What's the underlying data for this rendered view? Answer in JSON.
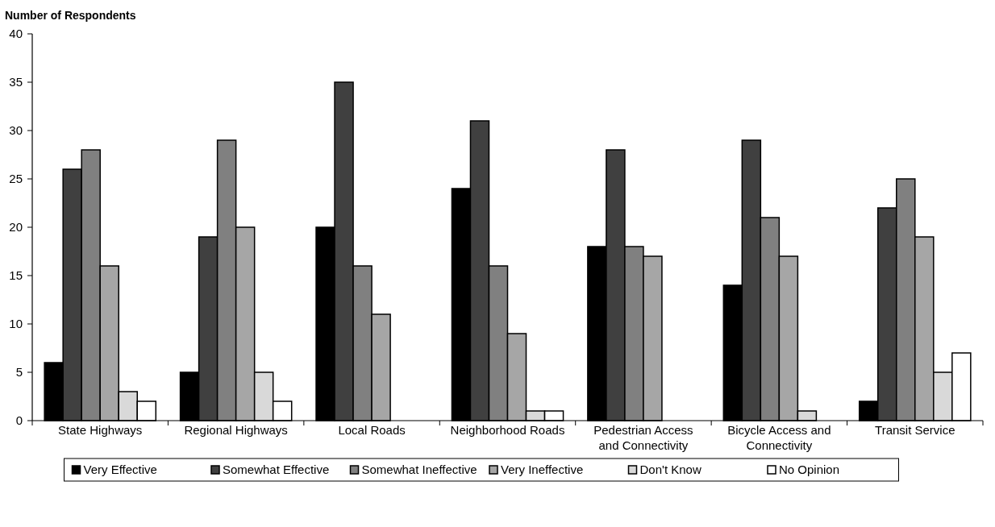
{
  "chart_data": {
    "type": "bar",
    "ylabel": "Number of Respondents",
    "categories": [
      "State Highways",
      "Regional Highways",
      "Local Roads",
      "Neighborhood Roads",
      "Pedestrian Access and Connectivity",
      "Bicycle Access and Connectivity",
      "Transit Service"
    ],
    "series": [
      {
        "name": "Very Effective",
        "color": "#000000",
        "values": [
          6,
          5,
          20,
          24,
          18,
          14,
          2
        ]
      },
      {
        "name": "Somewhat Effective",
        "color": "#404040",
        "values": [
          26,
          19,
          35,
          31,
          28,
          29,
          22
        ]
      },
      {
        "name": "Somewhat Ineffective",
        "color": "#808080",
        "values": [
          28,
          29,
          16,
          16,
          18,
          21,
          25
        ]
      },
      {
        "name": "Very Ineffective",
        "color": "#a6a6a6",
        "values": [
          16,
          20,
          11,
          9,
          17,
          17,
          19
        ]
      },
      {
        "name": "Don't Know",
        "color": "#d9d9d9",
        "values": [
          3,
          5,
          0,
          1,
          0,
          1,
          5
        ]
      },
      {
        "name": "No Opinion",
        "color": "#ffffff",
        "values": [
          2,
          2,
          0,
          1,
          0,
          0,
          7
        ]
      }
    ],
    "ylim": [
      0,
      40
    ],
    "yticks": [
      0,
      5,
      10,
      15,
      20,
      25,
      30,
      35,
      40
    ],
    "grid": false,
    "legend": "bottom"
  }
}
